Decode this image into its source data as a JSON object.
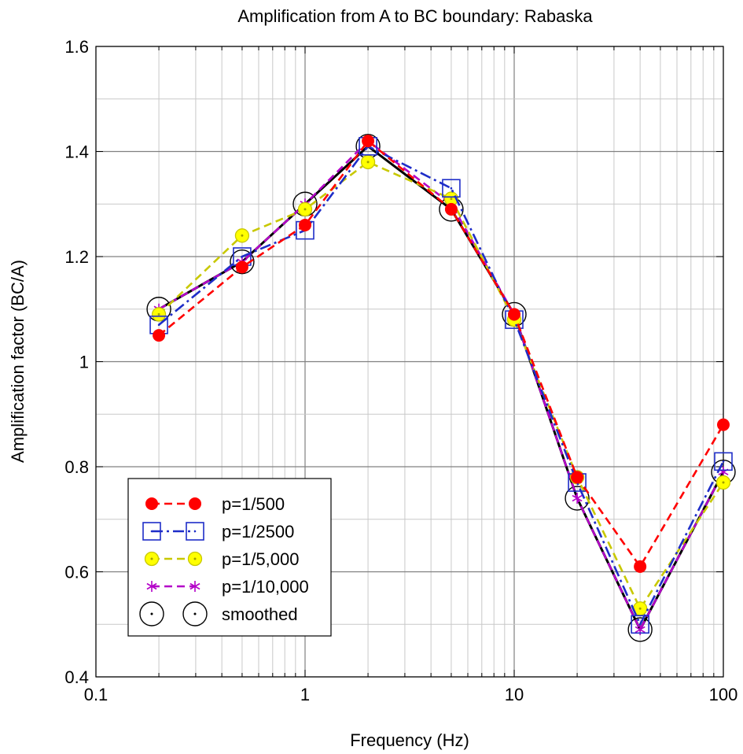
{
  "chart_data": {
    "type": "line",
    "title": "Amplification from A to BC boundary: Rabaska",
    "xlabel": "Frequency (Hz)",
    "ylabel": "Amplification factor (BC/A)",
    "xscale": "log",
    "xlim": [
      0.1,
      100
    ],
    "ylim": [
      0.4,
      1.6
    ],
    "x_ticks": [
      0.1,
      1,
      10,
      100
    ],
    "x_tick_labels": [
      "0.1",
      "1",
      "10",
      "100"
    ],
    "y_ticks": [
      0.4,
      0.6,
      0.8,
      1,
      1.2,
      1.4,
      1.6
    ],
    "y_tick_labels": [
      "0.4",
      "0.6",
      "0.8",
      "1",
      "1.2",
      "1.4",
      "1.6"
    ],
    "grid": true,
    "legend_position": "bottom-left",
    "x": [
      0.2,
      0.5,
      1,
      2,
      5,
      10,
      20,
      40,
      100
    ],
    "series": [
      {
        "name": "p=1/500",
        "color": "#ff0000",
        "line": "dashed",
        "marker": "filled-circle",
        "values": [
          1.05,
          1.18,
          1.26,
          1.42,
          1.29,
          1.09,
          0.78,
          0.61,
          0.88
        ]
      },
      {
        "name": "p=1/2500",
        "color": "#1e2dc8",
        "line": "dash-dot",
        "marker": "open-square-dot",
        "values": [
          1.07,
          1.2,
          1.25,
          1.41,
          1.33,
          1.08,
          0.77,
          0.5,
          0.81
        ]
      },
      {
        "name": "p=1/5,000",
        "color": "#c8c800",
        "line": "dashed",
        "marker": "yellow-circle-dot",
        "values": [
          1.09,
          1.24,
          1.29,
          1.38,
          1.31,
          1.08,
          0.78,
          0.53,
          0.77
        ]
      },
      {
        "name": "p=1/10,000",
        "color": "#b400c8",
        "line": "dashed",
        "marker": "asterisk",
        "values": [
          1.1,
          1.19,
          1.3,
          1.42,
          1.3,
          1.09,
          0.74,
          0.49,
          0.79
        ]
      },
      {
        "name": "smoothed",
        "color": "#000000",
        "line": "solid",
        "marker": "large-open-circle-dot",
        "values": [
          1.1,
          1.19,
          1.3,
          1.41,
          1.29,
          1.09,
          0.74,
          0.49,
          0.79
        ]
      }
    ]
  }
}
